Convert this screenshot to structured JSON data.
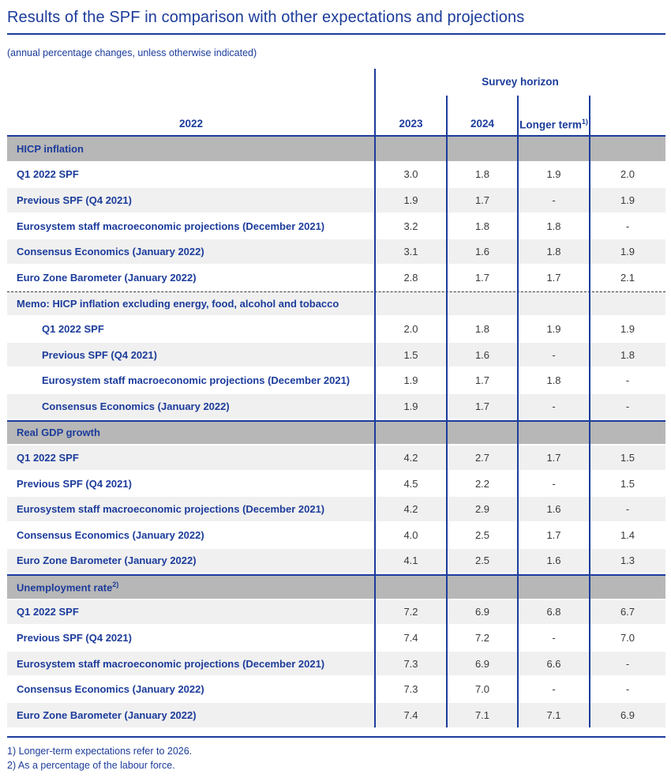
{
  "page": {
    "title": "Results of the SPF in comparison with other expectations and projections",
    "subtitle": "(annual percentage changes, unless otherwise indicated)"
  },
  "colors": {
    "accent_blue": "#1c3c9b",
    "section_header_gray": "#b7b7b7",
    "alt_row_gray": "#f0f0f0",
    "value_text": "#3a3a3a"
  },
  "table": {
    "survey_horizon_label": "Survey horizon",
    "columns": [
      "2022",
      "2023",
      "2024"
    ],
    "longer_term": {
      "label": "Longer term",
      "superscript": "1)"
    },
    "sections": [
      {
        "header": "HICP inflation",
        "style": "solid",
        "rows": [
          {
            "label": "Q1 2022 SPF",
            "values": [
              "3.0",
              "1.8",
              "1.9",
              "2.0"
            ]
          },
          {
            "label": "Previous SPF (Q4 2021)",
            "values": [
              "1.9",
              "1.7",
              "-",
              "1.9"
            ]
          },
          {
            "label": "Eurosystem staff macroeconomic projections (December 2021)",
            "values": [
              "3.2",
              "1.8",
              "1.8",
              "-"
            ]
          },
          {
            "label": "Consensus Economics (January 2022)",
            "values": [
              "3.1",
              "1.6",
              "1.8",
              "1.9"
            ]
          },
          {
            "label": "Euro Zone Barometer (January 2022)",
            "values": [
              "2.8",
              "1.7",
              "1.7",
              "2.1"
            ]
          }
        ]
      },
      {
        "header": "Memo: HICP inflation excluding energy, food, alcohol and tobacco",
        "style": "memo",
        "rows": [
          {
            "label": "Q1 2022 SPF",
            "values": [
              "2.0",
              "1.8",
              "1.9",
              "1.9"
            ]
          },
          {
            "label": "Previous SPF (Q4 2021)",
            "values": [
              "1.5",
              "1.6",
              "-",
              "1.8"
            ]
          },
          {
            "label": "Eurosystem staff macroeconomic projections (December 2021)",
            "values": [
              "1.9",
              "1.7",
              "1.8",
              "-"
            ]
          },
          {
            "label": "Consensus Economics (January 2022)",
            "values": [
              "1.9",
              "1.7",
              "-",
              "-"
            ]
          }
        ]
      },
      {
        "header": "Real GDP growth",
        "style": "solid",
        "rows": [
          {
            "label": "Q1 2022 SPF",
            "values": [
              "4.2",
              "2.7",
              "1.7",
              "1.5"
            ]
          },
          {
            "label": "Previous SPF (Q4 2021)",
            "values": [
              "4.5",
              "2.2",
              "-",
              "1.5"
            ]
          },
          {
            "label": "Eurosystem staff macroeconomic projections (December 2021)",
            "values": [
              "4.2",
              "2.9",
              "1.6",
              "-"
            ]
          },
          {
            "label": "Consensus Economics (January 2022)",
            "values": [
              "4.0",
              "2.5",
              "1.7",
              "1.4"
            ]
          },
          {
            "label": "Euro Zone Barometer (January 2022)",
            "values": [
              "4.1",
              "2.5",
              "1.6",
              "1.3"
            ]
          }
        ]
      },
      {
        "header": "Unemployment rate",
        "header_superscript": "2)",
        "style": "solid",
        "rows": [
          {
            "label": "Q1 2022 SPF",
            "values": [
              "7.2",
              "6.9",
              "6.8",
              "6.7"
            ]
          },
          {
            "label": "Previous SPF (Q4 2021)",
            "values": [
              "7.4",
              "7.2",
              "-",
              "7.0"
            ]
          },
          {
            "label": "Eurosystem staff macroeconomic projections (December 2021)",
            "values": [
              "7.3",
              "6.9",
              "6.6",
              "-"
            ]
          },
          {
            "label": "Consensus Economics (January 2022)",
            "values": [
              "7.3",
              "7.0",
              "-",
              "-"
            ]
          },
          {
            "label": "Euro Zone Barometer (January 2022)",
            "values": [
              "7.4",
              "7.1",
              "7.1",
              "6.9"
            ]
          }
        ]
      }
    ],
    "footnotes": [
      "1) Longer-term expectations refer to 2026.",
      "2) As a percentage of the labour force."
    ]
  }
}
